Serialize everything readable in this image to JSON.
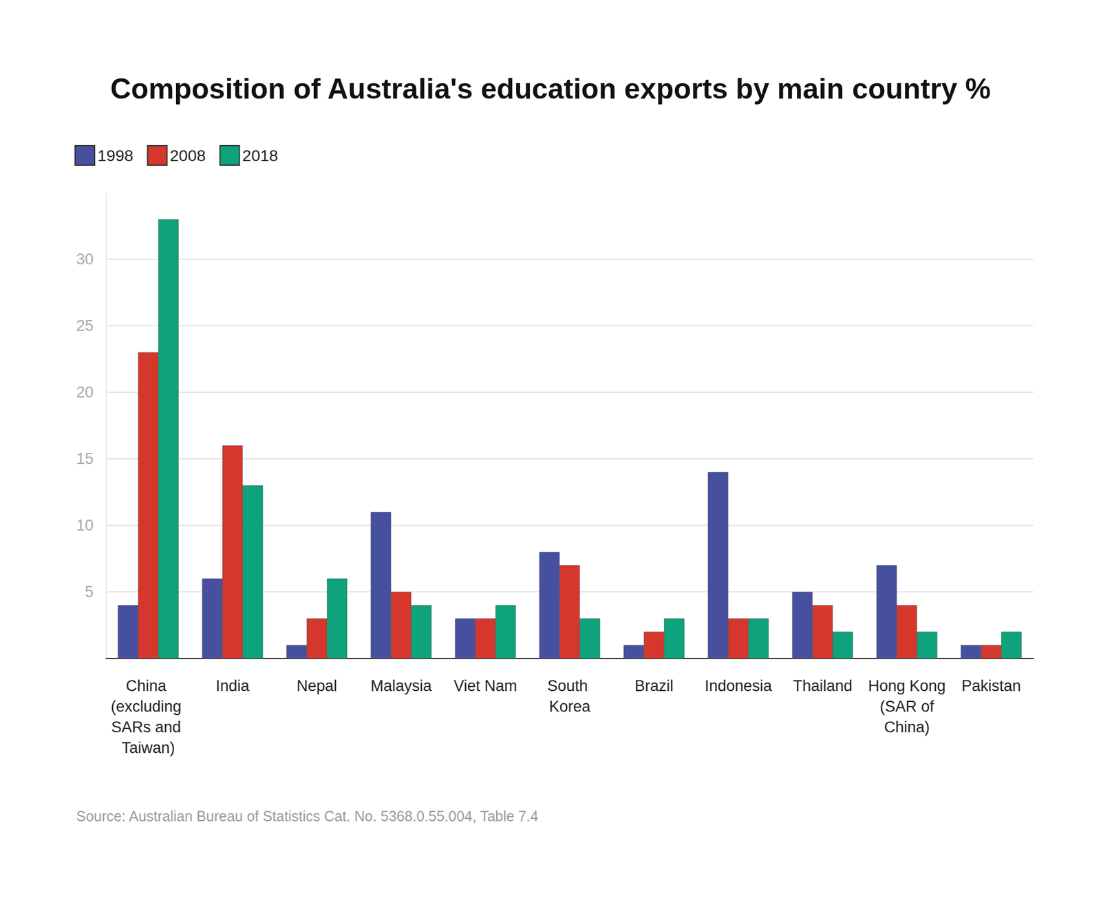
{
  "chart_data": {
    "type": "bar",
    "title": "Composition of Australia's education exports by main country %",
    "source": "Source: Australian Bureau of Statistics Cat. No. 5368.0.55.004, Table 7.4",
    "categories": [
      "China (excluding SARs and Taiwan)",
      "India",
      "Nepal",
      "Malaysia",
      "Viet Nam",
      "South Korea",
      "Brazil",
      "Indonesia",
      "Thailand",
      "Hong Kong (SAR of China)",
      "Pakistan"
    ],
    "series": [
      {
        "name": "1998",
        "color": "#474f9f",
        "values": [
          4,
          6,
          1,
          11,
          3,
          8,
          1,
          14,
          5,
          7,
          1
        ]
      },
      {
        "name": "2008",
        "color": "#d6372c",
        "values": [
          23,
          16,
          3,
          5,
          3,
          7,
          2,
          3,
          4,
          4,
          1
        ]
      },
      {
        "name": "2018",
        "color": "#0ea37a",
        "values": [
          33,
          13,
          6,
          4,
          4,
          3,
          3,
          3,
          2,
          2,
          2
        ]
      }
    ],
    "ylim": [
      0,
      35
    ],
    "yticks": [
      5,
      10,
      15,
      20,
      25,
      30
    ],
    "grid": true,
    "legend": "top-left"
  }
}
